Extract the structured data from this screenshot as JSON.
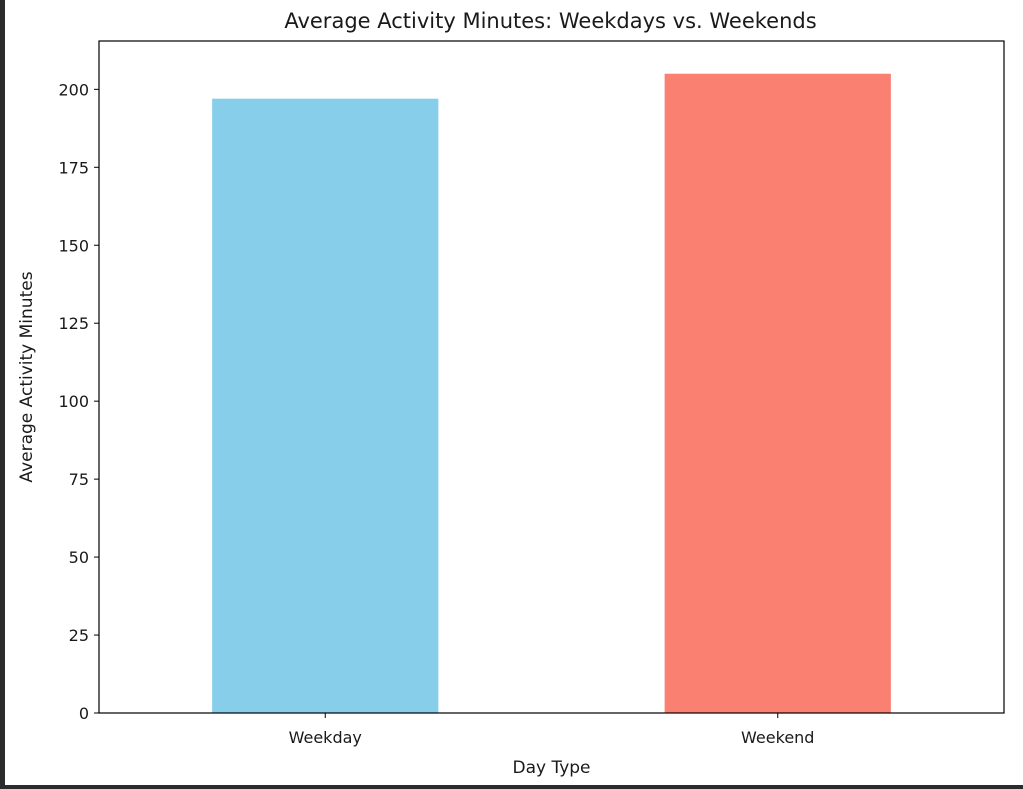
{
  "chart_data": {
    "type": "bar",
    "title": "Average Activity Minutes: Weekdays vs. Weekends",
    "xlabel": "Day Type",
    "ylabel": "Average Activity Minutes",
    "categories": [
      "Weekday",
      "Weekend"
    ],
    "values": [
      197,
      205
    ],
    "colors": [
      "#87ceeb",
      "#fa8072"
    ],
    "ylim": [
      0,
      215.5
    ],
    "yticks": [
      0,
      25,
      50,
      75,
      100,
      125,
      150,
      175,
      200
    ],
    "grid": false,
    "legend": "none"
  }
}
